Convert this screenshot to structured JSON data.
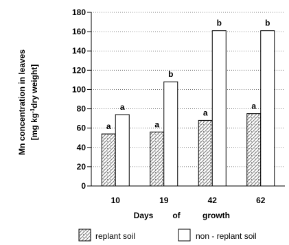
{
  "chart_data": {
    "type": "bar",
    "xlabel": "Days of growth",
    "xlabel_words": [
      "Days",
      "of",
      "growth"
    ],
    "ylabel_line1": "Mn concentration in leaves",
    "ylabel_line2": "[mg kg-1dry weight]",
    "categories": [
      "10",
      "19",
      "42",
      "62"
    ],
    "series": [
      {
        "name": "replant soil",
        "values": [
          54,
          56,
          68,
          75
        ],
        "letters": [
          "a",
          "a",
          "a",
          "a"
        ],
        "fill": "pattern"
      },
      {
        "name": "non - replant soil",
        "values": [
          74,
          108,
          161,
          161
        ],
        "letters": [
          "a",
          "b",
          "b",
          "b"
        ],
        "fill": "#ffffff"
      }
    ],
    "ylim": [
      0,
      180
    ],
    "yticks": [
      0,
      20,
      40,
      60,
      80,
      100,
      120,
      140,
      160,
      180
    ],
    "grid": "horizontal dotted",
    "legend_position": "bottom",
    "colors": {
      "bar_stroke": "#000000",
      "pattern_fg": "#7a7a7a",
      "pattern_bg": "#ffffff"
    }
  }
}
